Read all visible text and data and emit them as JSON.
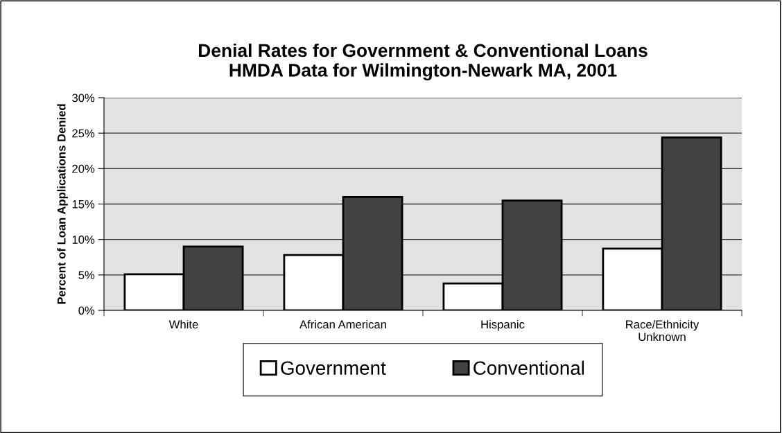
{
  "chart_data": {
    "type": "bar",
    "title": "Denial Rates for Government & Conventional Loans\nHMDA Data for Wilmington-Newark MA, 2001",
    "ylabel": "Percent of Loan Applications Denied",
    "categories": [
      "White",
      "African American",
      "Hispanic",
      "Race/Ethnicity\nUnknown"
    ],
    "series": [
      {
        "name": "Government",
        "color": "#ffffff",
        "values": [
          5.1,
          7.8,
          3.8,
          8.7
        ]
      },
      {
        "name": "Conventional",
        "color": "#424242",
        "values": [
          9.0,
          16.0,
          15.5,
          24.4
        ]
      }
    ],
    "ylim": [
      0,
      30
    ],
    "yticks": [
      {
        "value": 0,
        "label": "0%"
      },
      {
        "value": 5,
        "label": "5%"
      },
      {
        "value": 10,
        "label": "10%"
      },
      {
        "value": 15,
        "label": "15%"
      },
      {
        "value": 20,
        "label": "20%"
      },
      {
        "value": 25,
        "label": "25%"
      },
      {
        "value": 30,
        "label": "30%"
      }
    ],
    "grid": "y",
    "legend": "bottom"
  }
}
